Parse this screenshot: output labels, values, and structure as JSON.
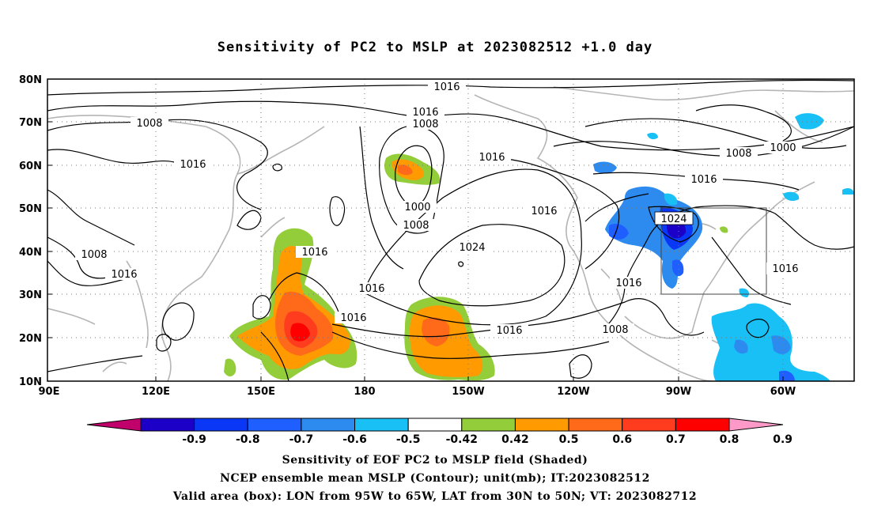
{
  "title": "Sensitivity of PC2 to MSLP at 2023082512 +1.0 day",
  "map": {
    "lat_labels": [
      "80N",
      "70N",
      "60N",
      "50N",
      "40N",
      "30N",
      "20N",
      "10N"
    ],
    "lon_labels": [
      "90E",
      "120E",
      "150E",
      "180",
      "150W",
      "120W",
      "90W",
      "60W"
    ],
    "contour_labels": [
      "1016",
      "1016",
      "1008",
      "1008",
      "1016",
      "1000",
      "1008",
      "1016",
      "1024",
      "1016",
      "1016",
      "1016",
      "1008",
      "1000",
      "1016",
      "1024",
      "1016",
      "1016",
      "1008",
      "1008",
      "1016"
    ],
    "box": {
      "lon_from": "95W",
      "lon_to": "65W",
      "lat_from": "30N",
      "lat_to": "50N"
    }
  },
  "colorbar": {
    "labels": [
      "-0.9",
      "-0.8",
      "-0.7",
      "-0.6",
      "-0.5",
      "-0.42",
      "0.42",
      "0.5",
      "0.6",
      "0.7",
      "0.8",
      "0.9"
    ],
    "colors": [
      "#c0006b",
      "#1c00c8",
      "#0a37f5",
      "#1f5fff",
      "#2d8bf0",
      "#18c0f5",
      "#ffffff",
      "#93cd3a",
      "#ff9a00",
      "#ff6a1a",
      "#ff3c1e",
      "#ff0000",
      "#ff9ac8"
    ]
  },
  "captions": {
    "line1": "Sensitivity of EOF PC2 to MSLP field (Shaded)",
    "line2": "NCEP ensemble mean MSLP (Contour); unit(mb); IT:2023082512",
    "line3": "Valid area (box): LON from 95W to 65W, LAT from 30N to 50N; VT: 2023082712"
  }
}
